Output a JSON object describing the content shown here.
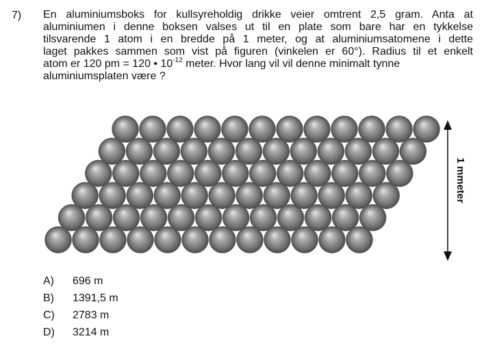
{
  "question": {
    "number": "7)",
    "lines": [
      "En aluminiumsboks for kullsyreholdig drikke veier omtrent 2,5 gram. Anta at",
      "aluminiumen i denne boksen valses ut til en plate som bare har en tykkelse",
      "tilsvarende 1 atom i en bredde på 1 meter, og at aluminiumsatomene i dette",
      "laget pakkes sammen som vist  på figuren (vinkelen er 60°). Radius til et enkelt"
    ],
    "line5_part1": "atom er 120 pm = 120 • 10",
    "line5_exponent": "-12",
    "line5_part2": " meter. Hvor lang vil vil denne minimalt tynne",
    "line6": "aluminiumsplaten være ?"
  },
  "figure": {
    "dimension_label": "1 mmeter",
    "rows": 6,
    "atoms_per_row": 12,
    "lattice_angle_deg": 60,
    "atom_color": "#7d7d7d",
    "arrow_color": "#111111"
  },
  "options": [
    {
      "letter": "A)",
      "text": "696 m"
    },
    {
      "letter": "B)",
      "text": "1391,5 m"
    },
    {
      "letter": "C)",
      "text": "2783 m"
    },
    {
      "letter": "D)",
      "text": "3214 m"
    }
  ]
}
